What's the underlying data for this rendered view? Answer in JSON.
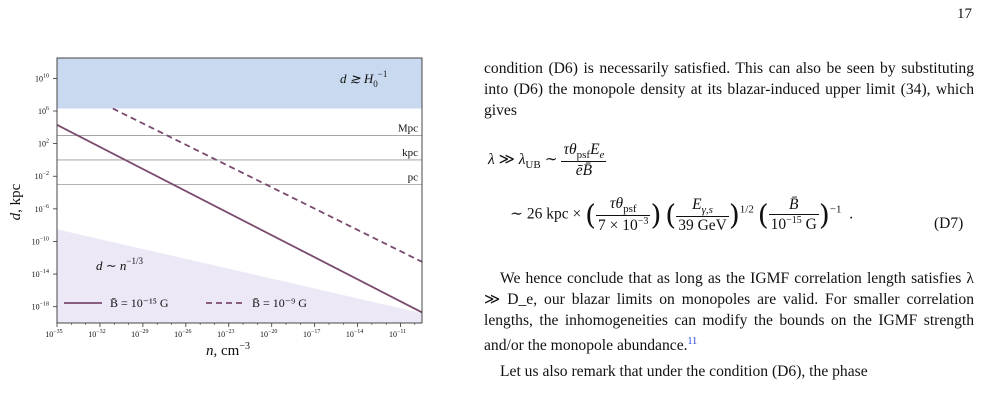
{
  "page_number": "17",
  "chart_data": {
    "type": "line",
    "xlabel": "n, cm⁻³",
    "ylabel": "d, kpc",
    "x_scale": "log",
    "y_scale": "log",
    "xlim_exp": [
      -35,
      -9.5
    ],
    "ylim_exp": [
      -20,
      12.5
    ],
    "x_tick_exponents": [
      -35,
      -32,
      -29,
      -26,
      -23,
      -20,
      -17,
      -14,
      -11
    ],
    "y_tick_exponents": [
      10,
      6,
      2,
      -2,
      -6,
      -10,
      -14,
      -18
    ],
    "reference_lines": [
      {
        "label": "Mpc",
        "log10_d": 3
      },
      {
        "label": "kpc",
        "log10_d": 0
      },
      {
        "label": "pc",
        "log10_d": -3
      }
    ],
    "hubble_region_min_log10_d": 6.3,
    "hubble_region_label": "d ≳ H₀⁻¹",
    "small_region_label": "d ~ n⁻¹ᐟ³",
    "series": [
      {
        "name": "B̄ = 10⁻¹⁵ G",
        "style": "solid",
        "x_exp": [
          -35,
          -9.5
        ],
        "y_exp": [
          4.3,
          -18.7
        ]
      },
      {
        "name": "B̄ = 10⁻⁹ G",
        "style": "dashed",
        "x_exp": [
          -31.1,
          -9.5
        ],
        "y_exp": [
          6.3,
          -12.5
        ]
      }
    ],
    "colors": {
      "line": "#7a4a6e",
      "hubble": "#c9d9ef",
      "small": "#ece8f5",
      "ref": "#9a9a9a"
    }
  },
  "text": {
    "para1": "condition (D6) is necessarily satisfied. This can also be seen by substituting into (D6) the monopole density at its blazar-induced upper limit (34), which gives",
    "eq_line1": "λ ≫ λ_UB ~ τθ_psf E_e / ēB̄",
    "eq_line2": "~ 26 kpc × (τθ_psf / 7×10⁻³)(E_γ,s / 39 GeV)^(1/2)(B̄ / 10⁻¹⁵ G)^(−1) .",
    "eq_number": "(D7)",
    "para2": "We hence conclude that as long as the IGMF correlation length satisfies λ ≫ D_e, our blazar limits on monopoles are valid. For smaller correlation lengths, the inhomogeneities can modify the bounds on the IGMF strength and/or the monopole abundance.",
    "footnote_mark": "11",
    "para3": "Let us also remark that under the condition (D6), the phase"
  }
}
